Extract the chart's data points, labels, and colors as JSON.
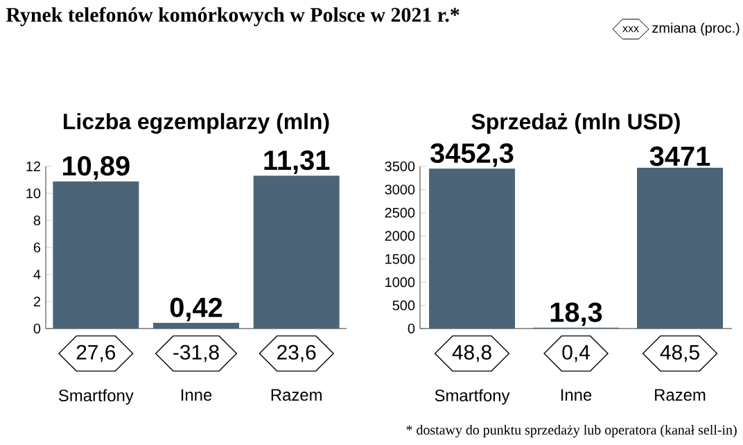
{
  "chart_data": [
    {
      "type": "bar",
      "title": "Liczba egzemplarzy (mln)",
      "categories": [
        "Smartfony",
        "Inne",
        "Razem"
      ],
      "values": [
        10.89,
        0.42,
        11.31
      ],
      "value_labels": [
        "10,89",
        "0,42",
        "11,31"
      ],
      "color": "#4b6478",
      "ylim": [
        0,
        12
      ],
      "yticks": [
        0,
        2,
        4,
        6,
        8,
        10,
        12
      ],
      "annotations": [
        "27,6",
        "-31,8",
        "23,6"
      ]
    },
    {
      "type": "bar",
      "title": "Sprzedaż (mln USD)",
      "categories": [
        "Smartfony",
        "Inne",
        "Razem"
      ],
      "values": [
        3452.3,
        18.3,
        3471
      ],
      "value_labels": [
        "3452,3",
        "18,3",
        "3471"
      ],
      "color": "#4b6478",
      "ylim": [
        0,
        3500
      ],
      "yticks": [
        0,
        500,
        1000,
        1500,
        2000,
        2500,
        3000,
        3500
      ],
      "annotations": [
        "48,8",
        "0,4",
        "48,5"
      ]
    },
    {
      "type": "other",
      "title": "Rynek telefonów komórkowych w Polsce w 2021 r.*",
      "annotations": [
        "xxx",
        "zmiana (proc.)",
        "* dostawy do punktu sprzedaży lub operatora (kanał sell-in)"
      ]
    }
  ]
}
